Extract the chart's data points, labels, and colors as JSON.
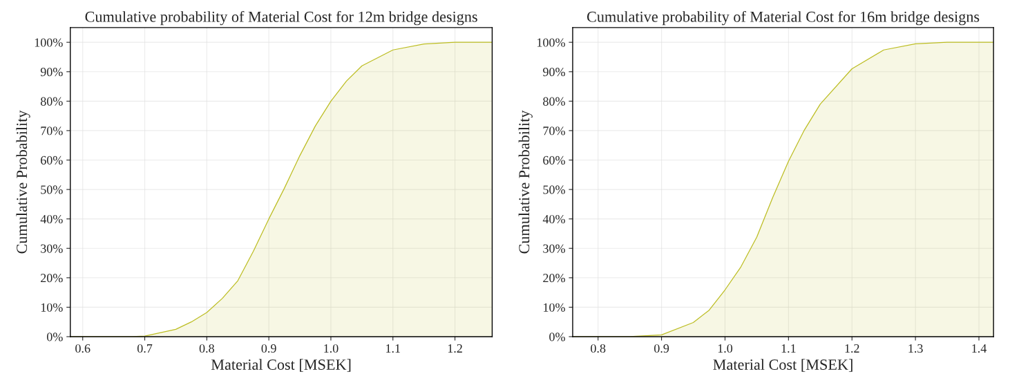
{
  "chart_data": [
    {
      "type": "area",
      "title": "Cumulative probability of Material Cost for 12m bridge designs",
      "xlabel": "Material Cost [MSEK]",
      "ylabel": "Cumulative Probability",
      "series": [
        {
          "color": "#bcbd22",
          "x": [
            0.58,
            0.68,
            0.7,
            0.75,
            0.775,
            0.8,
            0.825,
            0.85,
            0.875,
            0.9,
            0.925,
            0.95,
            0.975,
            1.0,
            1.025,
            1.05,
            1.1,
            1.15,
            1.2,
            1.26
          ],
          "values": [
            0,
            0,
            0.2,
            2.5,
            5,
            8.2,
            13,
            19,
            29,
            40,
            50.4,
            61.5,
            71.6,
            80,
            86.8,
            92,
            97.4,
            99.4,
            100,
            100
          ]
        }
      ],
      "xlim": [
        0.58,
        1.26
      ],
      "xticks": [
        {
          "value": 0.6,
          "label": "0.6"
        },
        {
          "value": 0.7,
          "label": "0.7"
        },
        {
          "value": 0.8,
          "label": "0.8"
        },
        {
          "value": 0.9,
          "label": "0.9"
        },
        {
          "value": 1.0,
          "label": "1.0"
        },
        {
          "value": 1.1,
          "label": "1.1"
        },
        {
          "value": 1.2,
          "label": "1.2"
        }
      ],
      "ylim": [
        0,
        105
      ],
      "yticks": [
        {
          "value": 0,
          "label": "0%"
        },
        {
          "value": 10,
          "label": "10%"
        },
        {
          "value": 20,
          "label": "20%"
        },
        {
          "value": 30,
          "label": "30%"
        },
        {
          "value": 40,
          "label": "40%"
        },
        {
          "value": 50,
          "label": "50%"
        },
        {
          "value": 60,
          "label": "60%"
        },
        {
          "value": 70,
          "label": "70%"
        },
        {
          "value": 80,
          "label": "80%"
        },
        {
          "value": 90,
          "label": "90%"
        },
        {
          "value": 100,
          "label": "100%"
        }
      ],
      "grid": true
    },
    {
      "type": "area",
      "title": "Cumulative probability of Material Cost for 16m bridge designs",
      "xlabel": "Material Cost [MSEK]",
      "ylabel": "Cumulative Probability",
      "series": [
        {
          "color": "#bcbd22",
          "x": [
            0.76,
            0.85,
            0.9,
            0.95,
            0.975,
            1.0,
            1.025,
            1.05,
            1.075,
            1.1,
            1.125,
            1.15,
            1.2,
            1.25,
            1.3,
            1.35,
            1.423
          ],
          "values": [
            0,
            0,
            0.6,
            4.8,
            9,
            15.9,
            23.7,
            33.8,
            47.2,
            59.6,
            70.2,
            79,
            91,
            97.4,
            99.5,
            100,
            100
          ]
        }
      ],
      "xlim": [
        0.76,
        1.423
      ],
      "xticks": [
        {
          "value": 0.8,
          "label": "0.8"
        },
        {
          "value": 0.9,
          "label": "0.9"
        },
        {
          "value": 1.0,
          "label": "1.0"
        },
        {
          "value": 1.1,
          "label": "1.1"
        },
        {
          "value": 1.2,
          "label": "1.2"
        },
        {
          "value": 1.3,
          "label": "1.3"
        },
        {
          "value": 1.4,
          "label": "1.4"
        }
      ],
      "ylim": [
        0,
        105
      ],
      "yticks": [
        {
          "value": 0,
          "label": "0%"
        },
        {
          "value": 10,
          "label": "10%"
        },
        {
          "value": 20,
          "label": "20%"
        },
        {
          "value": 30,
          "label": "30%"
        },
        {
          "value": 40,
          "label": "40%"
        },
        {
          "value": 50,
          "label": "50%"
        },
        {
          "value": 60,
          "label": "60%"
        },
        {
          "value": 70,
          "label": "70%"
        },
        {
          "value": 80,
          "label": "80%"
        },
        {
          "value": 90,
          "label": "90%"
        },
        {
          "value": 100,
          "label": "100%"
        }
      ],
      "grid": true
    }
  ]
}
